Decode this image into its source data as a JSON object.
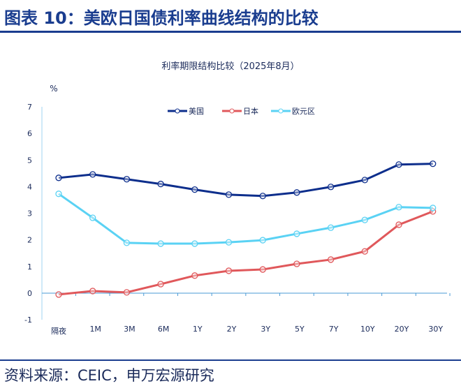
{
  "header": {
    "title": "图表 10：美欧日国债利率曲线结构的比较"
  },
  "footer": {
    "source": "资料来源：CEIC，申万宏源研究"
  },
  "chart_data": {
    "type": "line",
    "title": "利率期限结构比较（2025年8月）",
    "ylabel": "%",
    "xlabel": "",
    "ylim": [
      -1,
      7
    ],
    "yticks": [
      -1,
      0,
      1,
      2,
      3,
      4,
      5,
      6,
      7
    ],
    "categories": [
      "隔夜",
      "1M",
      "3M",
      "6M",
      "1Y",
      "2Y",
      "3Y",
      "5Y",
      "7Y",
      "10Y",
      "20Y",
      "30Y"
    ],
    "legend_position": "top",
    "grid": false,
    "series": [
      {
        "name": "美国",
        "color": "#0d2e8c",
        "values": [
          4.33,
          4.46,
          4.28,
          4.1,
          3.89,
          3.7,
          3.65,
          3.78,
          3.99,
          4.25,
          4.83,
          4.86
        ]
      },
      {
        "name": "日本",
        "color": "#e0585b",
        "values": [
          -0.05,
          0.08,
          0.03,
          0.34,
          0.66,
          0.84,
          0.89,
          1.1,
          1.26,
          1.57,
          2.57,
          3.07
        ]
      },
      {
        "name": "欧元区",
        "color": "#5ad2f4",
        "values": [
          3.73,
          2.83,
          1.89,
          1.86,
          1.86,
          1.91,
          1.99,
          2.23,
          2.46,
          2.75,
          3.23,
          3.2
        ]
      }
    ]
  }
}
